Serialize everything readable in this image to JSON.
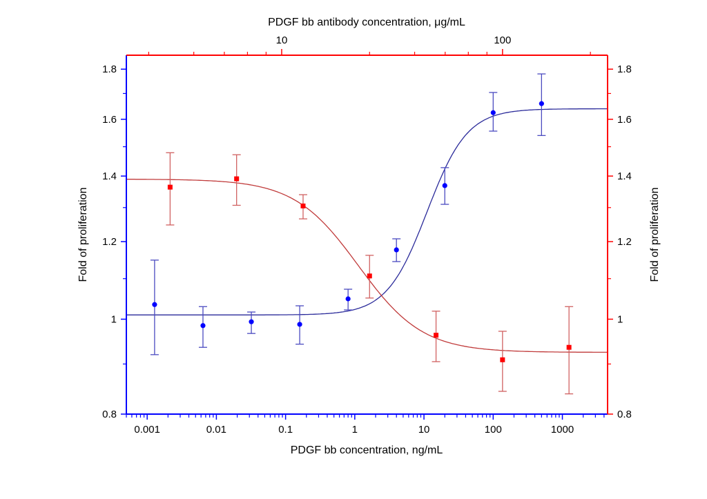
{
  "chart_data": {
    "type": "scatter",
    "title": "",
    "x_bottom": {
      "label": "PDGF bb concentration, ng/mL",
      "scale": "log",
      "range": [
        0.0005,
        4500
      ],
      "ticks": [
        0.001,
        0.01,
        0.1,
        1,
        10,
        100,
        1000
      ],
      "tick_labels": [
        "0.001",
        "0.01",
        "0.1",
        "1",
        "10",
        "100",
        "1000"
      ],
      "color": "#0000ff"
    },
    "x_top": {
      "label": "PDGF bb antibody concentration, μg/mL",
      "scale": "log",
      "range": [
        1.98,
        299
      ],
      "ticks": [
        10,
        100
      ],
      "tick_labels": [
        "10",
        "100"
      ],
      "minor_ticks": [
        2.5,
        4,
        5.5,
        7,
        8.5,
        25,
        40,
        55,
        70,
        85,
        250
      ],
      "color": "#ff0000"
    },
    "y_left": {
      "label": "Fold of proliferation",
      "scale": "log",
      "range": [
        0.8,
        1.86
      ],
      "ticks": [
        0.8,
        1,
        1.2,
        1.4,
        1.6,
        1.8
      ],
      "tick_labels": [
        "0.8",
        "1",
        "1.2",
        "1.4",
        "1.6",
        "1.8"
      ],
      "minor_ticks": [
        0.9,
        1.1,
        1.3,
        1.5,
        1.7
      ],
      "color": "#0000ff"
    },
    "y_right": {
      "label": "Fold of proliferation",
      "scale": "log",
      "range": [
        0.8,
        1.86
      ],
      "ticks": [
        0.8,
        1,
        1.2,
        1.4,
        1.6,
        1.8
      ],
      "tick_labels": [
        "0.8",
        "1",
        "1.2",
        "1.4",
        "1.6",
        "1.8"
      ],
      "minor_ticks": [
        0.9,
        1.1,
        1.3,
        1.5,
        1.7
      ],
      "color": "#ff0000"
    },
    "grid": false,
    "series": [
      {
        "axis": "bottom",
        "marker": "circle",
        "color": "#0000ff",
        "curve_color": "#2a2a9a",
        "errorbar_color": "#4a4ac0",
        "x": [
          0.00128,
          0.0064,
          0.032,
          0.16,
          0.8,
          4,
          20,
          100,
          500
        ],
        "y": [
          1.035,
          0.985,
          0.994,
          0.988,
          1.049,
          1.177,
          1.369,
          1.625,
          1.66
        ],
        "y_upper": [
          1.149,
          1.03,
          1.017,
          1.032,
          1.073,
          1.208,
          1.428,
          1.704,
          1.78
        ],
        "y_lower": [
          0.92,
          0.936,
          0.967,
          0.943,
          1.022,
          1.145,
          1.31,
          1.556,
          1.54
        ],
        "fit": {
          "model": "4PL",
          "bottom": 1.01,
          "top": 1.64,
          "ec50": 13,
          "hill": 1.5
        }
      },
      {
        "axis": "top",
        "marker": "square",
        "color": "#ff0000",
        "curve_color": "#c03a3a",
        "errorbar_color": "#d06060",
        "x": [
          3.125,
          6.25,
          12.5,
          25,
          50,
          100,
          200
        ],
        "y": [
          1.364,
          1.391,
          1.305,
          1.107,
          0.963,
          0.909,
          0.936
        ],
        "y_upper": [
          1.479,
          1.472,
          1.34,
          1.162,
          1.019,
          0.972,
          1.03
        ],
        "y_lower": [
          1.248,
          1.307,
          1.266,
          1.051,
          0.905,
          0.844,
          0.839
        ],
        "fit": {
          "model": "4PL",
          "bottom": 0.925,
          "top": 1.39,
          "ec50": 20.8,
          "hill": -3
        }
      }
    ]
  }
}
